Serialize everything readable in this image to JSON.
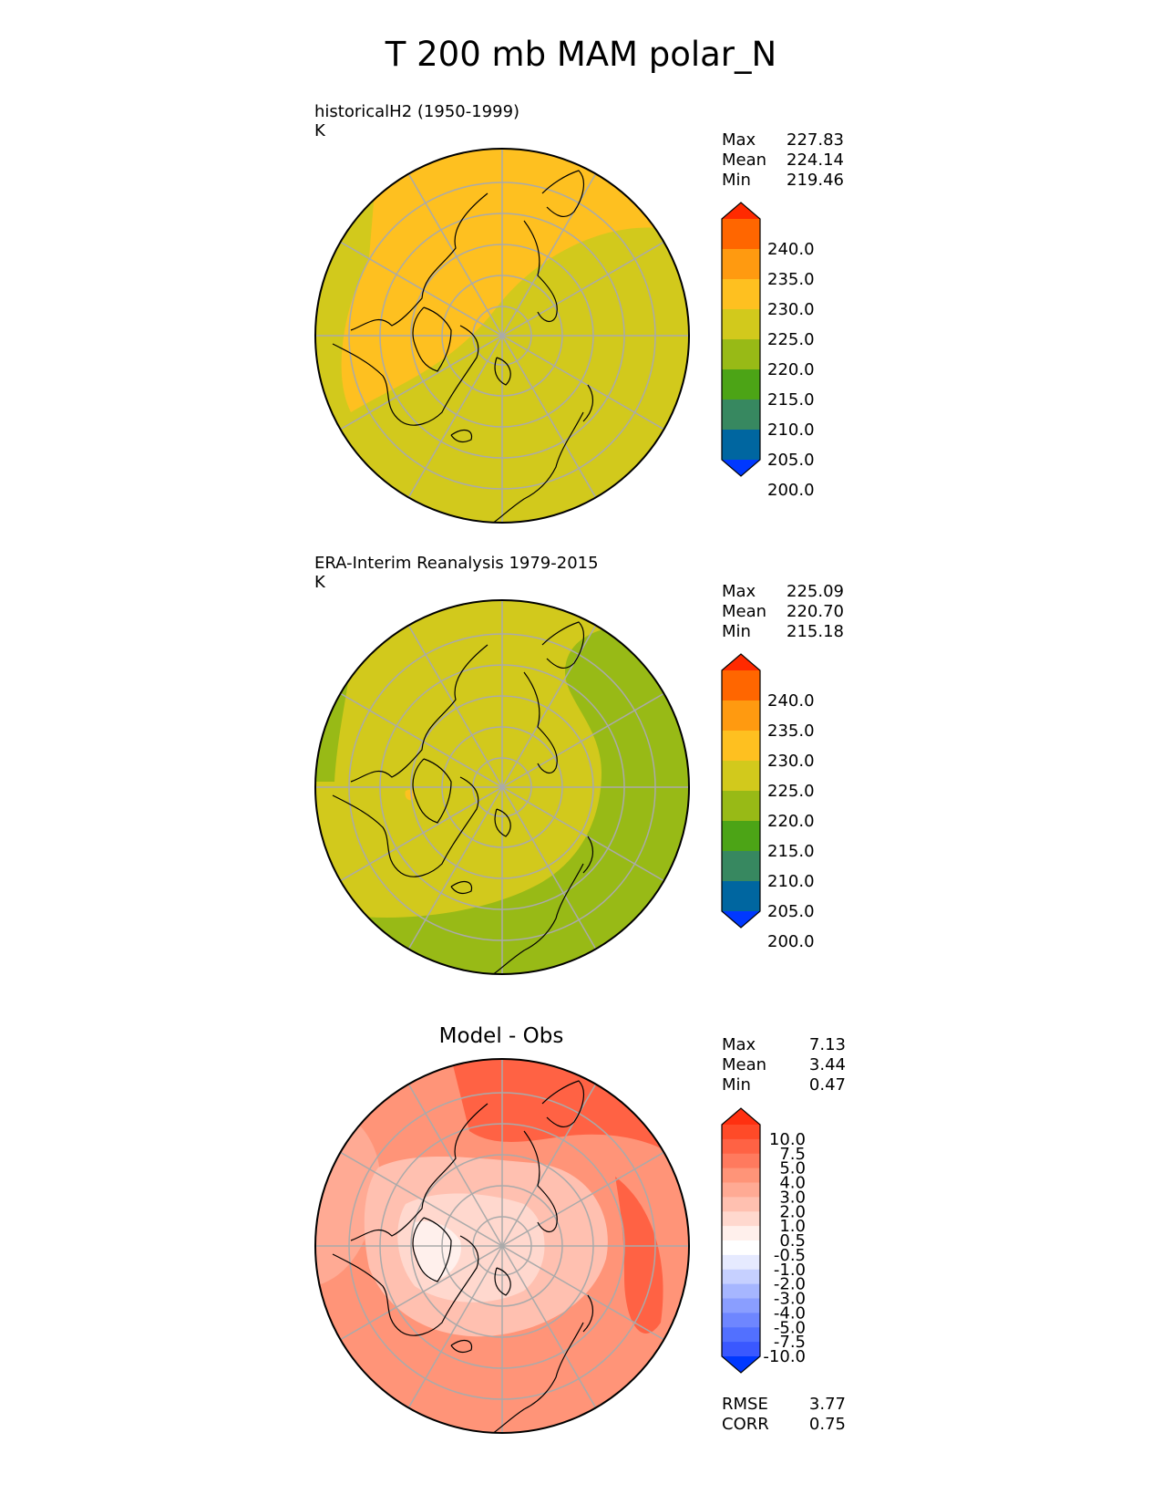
{
  "title": "T 200 mb MAM polar_N",
  "panels": [
    {
      "label_line1": "historicalH2 (1950-1999)",
      "label_line2": "K",
      "stats": {
        "max_label": "Max",
        "max": "227.83",
        "mean_label": "Mean",
        "mean": "224.14",
        "min_label": "Min",
        "min": "219.46"
      },
      "colorbar": [
        "240.0",
        "235.0",
        "230.0",
        "225.0",
        "220.0",
        "215.0",
        "210.0",
        "205.0",
        "200.0"
      ]
    },
    {
      "label_line1": "ERA-Interim Reanalysis 1979-2015",
      "label_line2": "K",
      "stats": {
        "max_label": "Max",
        "max": "225.09",
        "mean_label": "Mean",
        "mean": "220.70",
        "min_label": "Min",
        "min": "215.18"
      },
      "colorbar": [
        "240.0",
        "235.0",
        "230.0",
        "225.0",
        "220.0",
        "215.0",
        "210.0",
        "205.0",
        "200.0"
      ]
    },
    {
      "center_title": "Model - Obs",
      "stats": {
        "max_label": "Max",
        "max": "7.13",
        "mean_label": "Mean",
        "mean": "3.44",
        "min_label": "Min",
        "min": "0.47"
      },
      "colorbar": [
        "10.0",
        "7.5",
        "5.0",
        "4.0",
        "3.0",
        "2.0",
        "1.0",
        "0.5",
        "-0.5",
        "-1.0",
        "-2.0",
        "-3.0",
        "-4.0",
        "-5.0",
        "-7.5",
        "-10.0"
      ],
      "footer": {
        "rmse_label": "RMSE",
        "rmse": "3.77",
        "corr_label": "CORR",
        "corr": "0.75"
      }
    }
  ],
  "colors": {
    "abs_levels": [
      "#ff2a00",
      "#ff6600",
      "#ff9a10",
      "#fec020",
      "#d2c91c",
      "#98ba16",
      "#4ca416",
      "#378860",
      "#0066a0",
      "#0038ff"
    ],
    "diff_levels": [
      "#ff3010",
      "#ff4a28",
      "#ff6244",
      "#ff7a5e",
      "#ff9478",
      "#ffaa94",
      "#ffc0b0",
      "#ffd8ce",
      "#fff0ec",
      "#ffffff",
      "#e6eaff",
      "#c6d0ff",
      "#a6b6ff",
      "#8a9eff",
      "#6e86ff",
      "#5270ff",
      "#3a58ff",
      "#0038ff"
    ]
  }
}
